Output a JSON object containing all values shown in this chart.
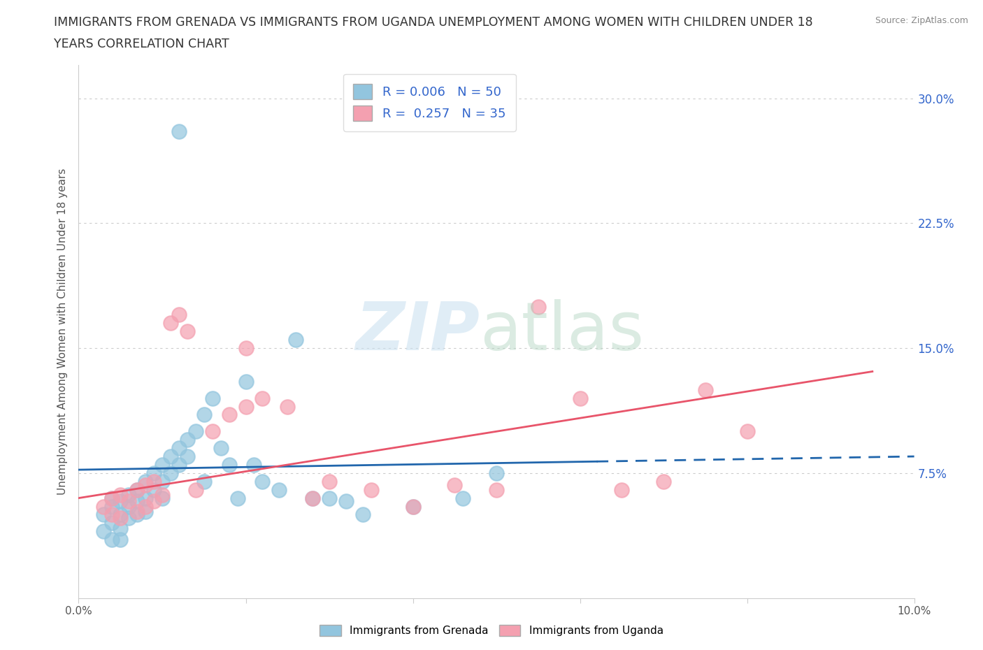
{
  "title_line1": "IMMIGRANTS FROM GRENADA VS IMMIGRANTS FROM UGANDA UNEMPLOYMENT AMONG WOMEN WITH CHILDREN UNDER 18",
  "title_line2": "YEARS CORRELATION CHART",
  "source": "Source: ZipAtlas.com",
  "ylabel": "Unemployment Among Women with Children Under 18 years",
  "xlim": [
    0.0,
    0.1
  ],
  "ylim": [
    0.0,
    0.32
  ],
  "yticks": [
    0.0,
    0.075,
    0.15,
    0.225,
    0.3
  ],
  "ytick_labels": [
    "",
    "7.5%",
    "15.0%",
    "22.5%",
    "30.0%"
  ],
  "gridline_y": [
    0.075,
    0.15,
    0.225,
    0.3
  ],
  "r_grenada": 0.006,
  "n_grenada": 50,
  "r_uganda": 0.257,
  "n_uganda": 35,
  "color_grenada": "#92C5DE",
  "color_uganda": "#F4A0B0",
  "color_grenada_line": "#2166AC",
  "color_uganda_line": "#E8546A",
  "grenada_x": [
    0.003,
    0.003,
    0.004,
    0.004,
    0.004,
    0.004,
    0.005,
    0.005,
    0.005,
    0.005,
    0.006,
    0.006,
    0.006,
    0.007,
    0.007,
    0.007,
    0.008,
    0.008,
    0.008,
    0.009,
    0.009,
    0.01,
    0.01,
    0.01,
    0.011,
    0.011,
    0.012,
    0.012,
    0.013,
    0.013,
    0.014,
    0.015,
    0.015,
    0.016,
    0.017,
    0.018,
    0.019,
    0.02,
    0.021,
    0.022,
    0.024,
    0.026,
    0.028,
    0.03,
    0.032,
    0.034,
    0.04,
    0.046,
    0.05,
    0.012
  ],
  "grenada_y": [
    0.05,
    0.04,
    0.055,
    0.06,
    0.045,
    0.035,
    0.058,
    0.05,
    0.042,
    0.035,
    0.062,
    0.055,
    0.048,
    0.065,
    0.058,
    0.05,
    0.07,
    0.06,
    0.052,
    0.075,
    0.065,
    0.08,
    0.07,
    0.06,
    0.085,
    0.075,
    0.09,
    0.08,
    0.095,
    0.085,
    0.1,
    0.11,
    0.07,
    0.12,
    0.09,
    0.08,
    0.06,
    0.13,
    0.08,
    0.07,
    0.065,
    0.155,
    0.06,
    0.06,
    0.058,
    0.05,
    0.055,
    0.06,
    0.075,
    0.28
  ],
  "uganda_x": [
    0.003,
    0.004,
    0.004,
    0.005,
    0.005,
    0.006,
    0.007,
    0.007,
    0.008,
    0.008,
    0.009,
    0.009,
    0.01,
    0.011,
    0.012,
    0.013,
    0.014,
    0.016,
    0.018,
    0.02,
    0.022,
    0.025,
    0.028,
    0.03,
    0.035,
    0.04,
    0.045,
    0.05,
    0.055,
    0.06,
    0.065,
    0.07,
    0.075,
    0.08,
    0.02
  ],
  "uganda_y": [
    0.055,
    0.06,
    0.05,
    0.062,
    0.048,
    0.058,
    0.065,
    0.052,
    0.068,
    0.055,
    0.07,
    0.058,
    0.062,
    0.165,
    0.17,
    0.16,
    0.065,
    0.1,
    0.11,
    0.115,
    0.12,
    0.115,
    0.06,
    0.07,
    0.065,
    0.055,
    0.068,
    0.065,
    0.175,
    0.12,
    0.065,
    0.07,
    0.125,
    0.1,
    0.15
  ]
}
